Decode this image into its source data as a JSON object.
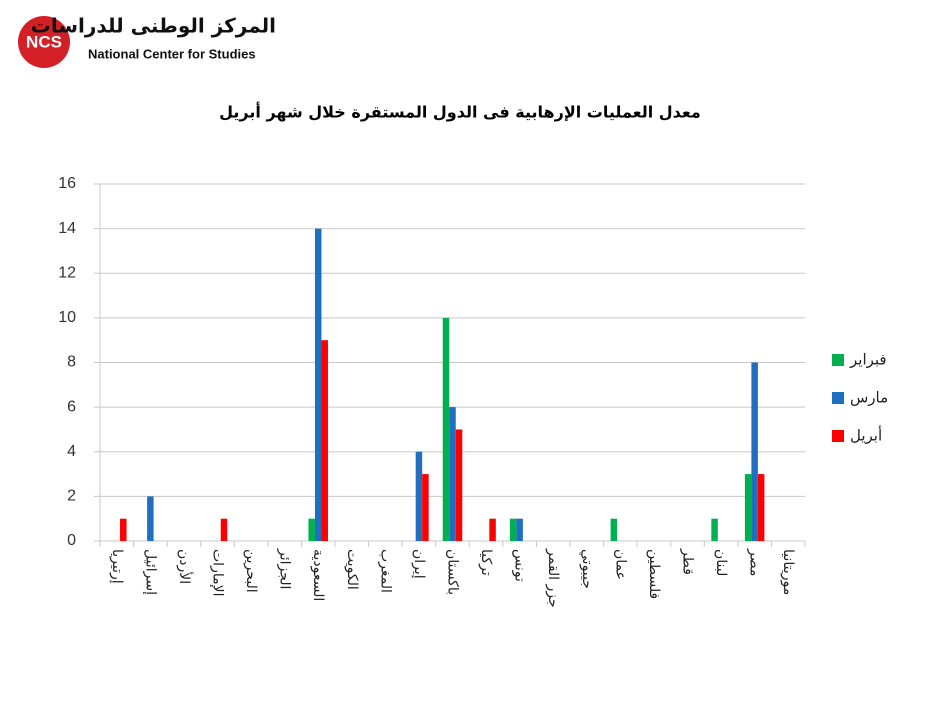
{
  "logo": {
    "mark": "NCS",
    "arabic": "المركز الوطنى للدراسات",
    "english": "National Center for Studies"
  },
  "chart_data": {
    "type": "bar",
    "title": "معدل العمليات الإرهابية فى الدول المستقرة خلال شهر أبريل",
    "categories": [
      "إرتيريا",
      "إسرائيل",
      "الأردن",
      "الإمارات",
      "البحرين",
      "الجزائر",
      "السعودية",
      "الكويت",
      "المغرب",
      "إيران",
      "باكستان",
      "تركيا",
      "تونس",
      "جزر القمر",
      "جيبوتي",
      "عمان",
      "فلسطين",
      "قطر",
      "لبنان",
      "مصر",
      "موريتانيا"
    ],
    "series": [
      {
        "name": "فبراير",
        "color": "#00b050",
        "values": [
          0,
          0,
          0,
          0,
          0,
          0,
          1,
          0,
          0,
          0,
          10,
          0,
          1,
          0,
          0,
          1,
          0,
          0,
          1,
          3,
          0
        ]
      },
      {
        "name": "مارس",
        "color": "#1f6fc0",
        "values": [
          0,
          2,
          0,
          0,
          0,
          0,
          14,
          0,
          0,
          4,
          6,
          0,
          1,
          0,
          0,
          0,
          0,
          0,
          0,
          8,
          0
        ]
      },
      {
        "name": "أبريل",
        "color": "#ff0000",
        "values": [
          1,
          0,
          0,
          1,
          0,
          0,
          9,
          0,
          0,
          3,
          5,
          1,
          0,
          0,
          0,
          0,
          0,
          0,
          0,
          3,
          0
        ]
      }
    ],
    "ylim": [
      0,
      16
    ],
    "yticks": [
      0,
      2,
      4,
      6,
      8,
      10,
      12,
      14,
      16
    ],
    "grid": true,
    "legend": "right"
  }
}
